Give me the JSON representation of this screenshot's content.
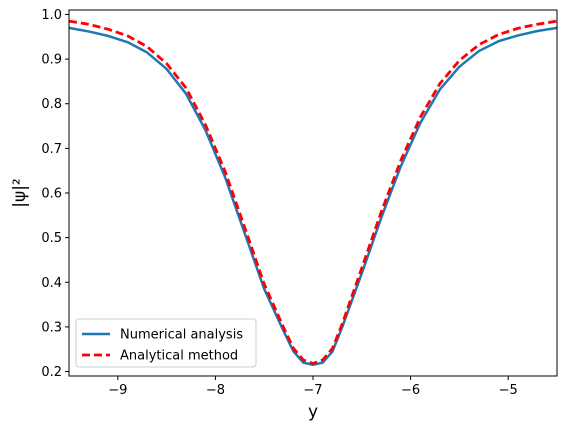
{
  "chart_data": {
    "type": "line",
    "title": "",
    "xlabel": "y",
    "ylabel": "|ψ|²",
    "xlim": [
      -9.5,
      -4.5
    ],
    "ylim": [
      0.19,
      1.01
    ],
    "xticks": [
      -9,
      -8,
      -7,
      -6,
      -5
    ],
    "yticks": [
      0.2,
      0.3,
      0.4,
      0.5,
      0.6,
      0.7,
      0.8,
      0.9,
      1.0
    ],
    "xtick_labels": [
      "−9",
      "−8",
      "−7",
      "−6",
      "−5"
    ],
    "ytick_labels": [
      "0.2",
      "0.3",
      "0.4",
      "0.5",
      "0.6",
      "0.7",
      "0.8",
      "0.9",
      "1.0"
    ],
    "grid": false,
    "legend_position": "lower-left",
    "series": [
      {
        "name": "Numerical analysis",
        "color": "#1f77b4",
        "style": "solid",
        "x": [
          -9.5,
          -9.3,
          -9.1,
          -8.9,
          -8.7,
          -8.5,
          -8.3,
          -8.1,
          -7.9,
          -7.7,
          -7.5,
          -7.3,
          -7.2,
          -7.1,
          -7.0,
          -6.9,
          -6.8,
          -6.7,
          -6.5,
          -6.3,
          -6.1,
          -5.9,
          -5.7,
          -5.5,
          -5.3,
          -5.1,
          -4.9,
          -4.7,
          -4.5
        ],
        "y": [
          0.97,
          0.962,
          0.952,
          0.938,
          0.915,
          0.878,
          0.822,
          0.74,
          0.635,
          0.51,
          0.385,
          0.29,
          0.245,
          0.22,
          0.215,
          0.22,
          0.245,
          0.3,
          0.42,
          0.545,
          0.66,
          0.757,
          0.832,
          0.883,
          0.918,
          0.94,
          0.953,
          0.963,
          0.97
        ]
      },
      {
        "name": "Analytical method",
        "color": "#ff0000",
        "style": "dashed",
        "x": [
          -9.5,
          -9.3,
          -9.1,
          -8.9,
          -8.7,
          -8.5,
          -8.3,
          -8.1,
          -7.9,
          -7.7,
          -7.5,
          -7.3,
          -7.2,
          -7.1,
          -7.0,
          -6.9,
          -6.8,
          -6.7,
          -6.5,
          -6.3,
          -6.1,
          -5.9,
          -5.7,
          -5.5,
          -5.3,
          -5.1,
          -4.9,
          -4.7,
          -4.5
        ],
        "y": [
          0.985,
          0.978,
          0.967,
          0.952,
          0.928,
          0.89,
          0.835,
          0.752,
          0.648,
          0.523,
          0.396,
          0.298,
          0.252,
          0.226,
          0.218,
          0.226,
          0.252,
          0.307,
          0.432,
          0.558,
          0.673,
          0.77,
          0.845,
          0.897,
          0.932,
          0.955,
          0.969,
          0.978,
          0.985
        ]
      }
    ]
  }
}
